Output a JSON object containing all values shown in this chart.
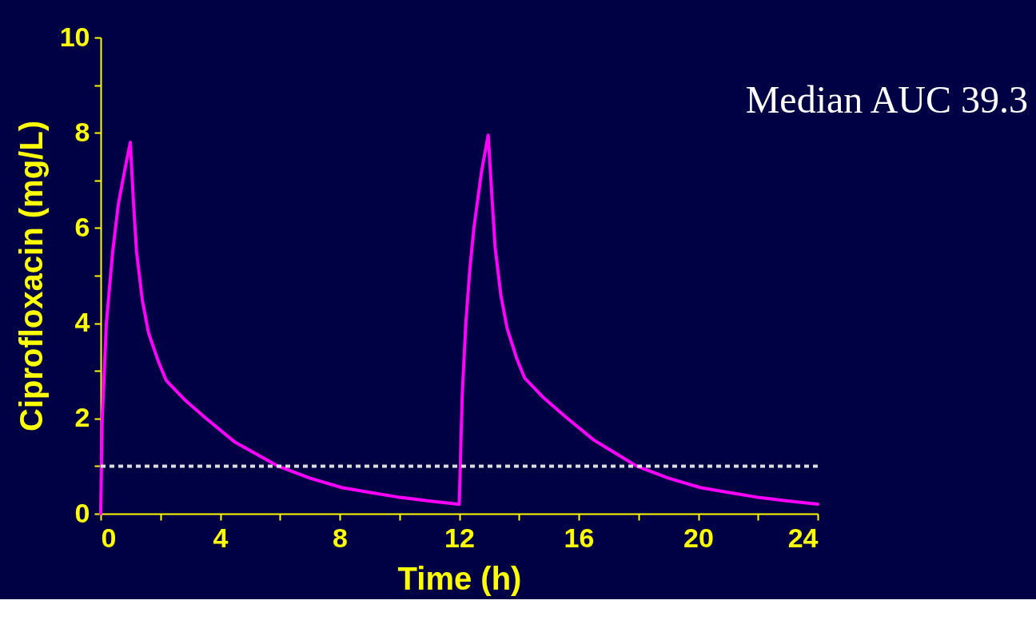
{
  "chart_data": {
    "type": "line",
    "xlabel": "Time (h)",
    "ylabel": "Ciprofloxacin (mg/L)",
    "annotations": [
      "Median AUC 39.3"
    ],
    "x": [
      0,
      0.05,
      0.19,
      0.4,
      0.59,
      0.8,
      0.99,
      1.1,
      1.2,
      1.39,
      1.6,
      1.93,
      2.19,
      2.8,
      3.53,
      4.5,
      5.94,
      7,
      8.07,
      9,
      9.95,
      11,
      11.95,
      12.0,
      12.1,
      12.22,
      12.35,
      12.49,
      12.75,
      12.97,
      13.1,
      13.2,
      13.39,
      13.6,
      13.93,
      14.19,
      14.8,
      15.53,
      16.5,
      17.94,
      19,
      20.07,
      21,
      21.95,
      23,
      24
    ],
    "series": [
      {
        "color": "#ff00ff",
        "values": [
          0,
          2.0,
          4.0,
          5.5,
          6.5,
          7.2,
          7.8,
          6.5,
          5.5,
          4.5,
          3.8,
          3.2,
          2.8,
          2.4,
          2.0,
          1.5,
          1.0,
          0.75,
          0.55,
          0.45,
          0.35,
          0.27,
          0.2,
          0.2,
          2.5,
          4.0,
          5.1,
          6.0,
          7.2,
          7.95,
          6.6,
          5.6,
          4.6,
          3.9,
          3.25,
          2.85,
          2.45,
          2.05,
          1.55,
          1.0,
          0.75,
          0.55,
          0.45,
          0.35,
          0.27,
          0.2
        ]
      }
    ],
    "xlim": [
      0,
      24
    ],
    "ylim": [
      0,
      10
    ],
    "xticks": [
      0,
      {
        "value": 2,
        "label": null
      },
      4,
      {
        "value": 6,
        "label": null
      },
      8,
      {
        "value": 10,
        "label": null
      },
      12,
      {
        "value": 14,
        "label": null
      },
      16,
      {
        "value": 18,
        "label": null
      },
      20,
      {
        "value": 22,
        "label": null
      },
      24
    ],
    "yticks": [
      0,
      {
        "value": 1,
        "label": null
      },
      2,
      {
        "value": 3,
        "label": null
      },
      4,
      {
        "value": 5,
        "label": null
      },
      6,
      {
        "value": 7,
        "label": null
      },
      8,
      {
        "value": 9,
        "label": null
      },
      10
    ],
    "ref_lines": [
      {
        "axis": "y",
        "value": 1,
        "color": "#dddddd",
        "line_style": "dashed"
      }
    ],
    "grid": false,
    "marker": "none",
    "line_style": "solid"
  }
}
